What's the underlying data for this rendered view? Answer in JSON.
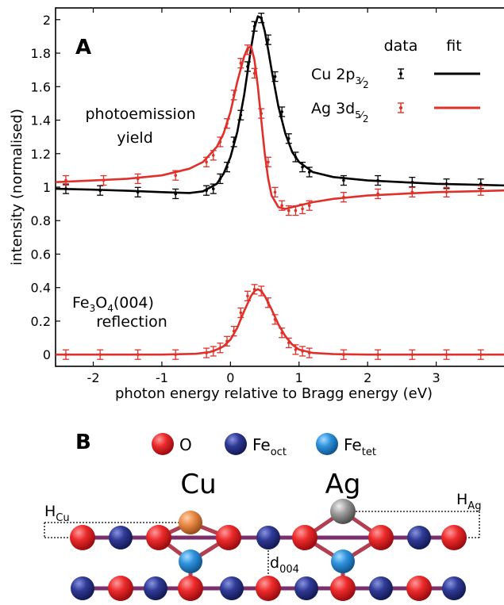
{
  "panel_a": {
    "label": "A",
    "xlabel": "photon energy relative to Bragg energy (eV)",
    "ylabel": "intensity (normalised)",
    "xticks": [
      "-2",
      "-1",
      "0",
      "1",
      "2",
      "3"
    ],
    "yticks": [
      "0",
      "0.2",
      "0.4",
      "0.6",
      "0.8",
      "1",
      "1.2",
      "1.4",
      "1.6",
      "1.8",
      "2"
    ],
    "legend": {
      "data_header": "data",
      "fit_header": "fit",
      "cu_entry": "Cu 2p",
      "cu_sub1": "3",
      "cu_sub2": "2",
      "ag_entry": "Ag 3d",
      "ag_sub1": "5",
      "ag_sub2": "2"
    },
    "annotations": {
      "pe_line1": "photoemission",
      "pe_line2": "yield",
      "refl_fe": "Fe",
      "refl_sub3": "3",
      "refl_o": "O",
      "refl_sub4": "4",
      "refl_hkl": "(004)",
      "refl_line2": "reflection"
    }
  },
  "panel_b": {
    "label": "B",
    "legend_o": "O",
    "legend_feoct": "Fe",
    "legend_feoct_sub": "oct",
    "legend_fetet": "Fe",
    "legend_fetet_sub": "tet",
    "cu_label": "Cu",
    "ag_label": "Ag",
    "h_cu": "H",
    "h_cu_sub": "Cu",
    "h_ag": "H",
    "h_ag_sub": "Ag",
    "d_label": "d",
    "d_sub": "004"
  },
  "colors": {
    "cu": "#000000",
    "ag": "#e0302a",
    "o_atom": "#e8222a",
    "fe_oct": "#2e3a8c",
    "fe_tet": "#2f8fd6",
    "cu_atom": "#e98a45",
    "ag_atom": "#9a9a9a"
  },
  "chart_data": {
    "type": "line",
    "xlim": [
      -2.55,
      4.0
    ],
    "ylim": [
      -0.07,
      2.07
    ],
    "grid": false,
    "legend_position": "top-right",
    "series": [
      {
        "name": "Cu 2p3/2",
        "kind": "data",
        "x": [
          -2.4,
          -1.9,
          -1.35,
          -0.8,
          -0.35,
          -0.25,
          -0.15,
          -0.05,
          0.05,
          0.15,
          0.25,
          0.35,
          0.45,
          0.55,
          0.65,
          0.75,
          0.85,
          0.95,
          1.05,
          1.15,
          1.65,
          2.15,
          2.65,
          3.15,
          3.65
        ],
        "y": [
          0.99,
          0.98,
          0.97,
          0.96,
          0.98,
          0.99,
          1.05,
          1.12,
          1.27,
          1.43,
          1.72,
          1.96,
          2.01,
          1.88,
          1.66,
          1.45,
          1.29,
          1.18,
          1.12,
          1.09,
          1.04,
          1.04,
          1.03,
          1.02,
          1.02
        ]
      },
      {
        "name": "Ag 3d5/2",
        "kind": "data",
        "x": [
          -2.4,
          -1.85,
          -1.35,
          -0.8,
          -0.35,
          -0.25,
          -0.15,
          -0.05,
          0.05,
          0.15,
          0.25,
          0.35,
          0.45,
          0.55,
          0.65,
          0.75,
          0.85,
          0.95,
          1.05,
          1.15,
          1.65,
          2.15,
          2.65,
          3.15,
          3.65
        ],
        "y": [
          1.04,
          1.04,
          1.05,
          1.07,
          1.15,
          1.19,
          1.27,
          1.38,
          1.55,
          1.74,
          1.82,
          1.68,
          1.44,
          1.15,
          0.97,
          0.89,
          0.86,
          0.86,
          0.87,
          0.89,
          0.94,
          0.96,
          0.97,
          0.97,
          0.98
        ]
      },
      {
        "name": "Fe3O4(004) reflection",
        "kind": "data",
        "x": [
          -2.4,
          -1.9,
          -1.35,
          -0.8,
          -0.35,
          -0.25,
          -0.15,
          -0.05,
          0.05,
          0.15,
          0.25,
          0.35,
          0.45,
          0.55,
          0.65,
          0.75,
          0.85,
          0.95,
          1.05,
          1.15,
          1.65,
          2.15,
          2.65,
          3.15,
          3.65
        ],
        "y": [
          0.0,
          0.0,
          0.0,
          0.0,
          0.01,
          0.02,
          0.04,
          0.08,
          0.14,
          0.25,
          0.35,
          0.39,
          0.38,
          0.31,
          0.21,
          0.13,
          0.07,
          0.03,
          0.02,
          0.01,
          0.0,
          0.0,
          0.0,
          0.0,
          0.0
        ]
      },
      {
        "name": "Cu 2p3/2",
        "kind": "fit",
        "x": [
          -2.55,
          -2.0,
          -1.5,
          -1.0,
          -0.6,
          -0.4,
          -0.2,
          -0.1,
          0.0,
          0.1,
          0.2,
          0.3,
          0.35,
          0.4,
          0.45,
          0.5,
          0.55,
          0.6,
          0.7,
          0.8,
          0.9,
          1.0,
          1.2,
          1.5,
          2.0,
          2.5,
          3.0,
          3.5,
          4.0
        ],
        "y": [
          0.99,
          0.985,
          0.978,
          0.97,
          0.965,
          0.975,
          1.02,
          1.08,
          1.18,
          1.33,
          1.55,
          1.83,
          1.95,
          2.02,
          2.01,
          1.93,
          1.82,
          1.7,
          1.48,
          1.32,
          1.21,
          1.15,
          1.09,
          1.06,
          1.04,
          1.03,
          1.02,
          1.015,
          1.01
        ]
      },
      {
        "name": "Ag 3d5/2",
        "kind": "fit",
        "x": [
          -2.55,
          -2.0,
          -1.5,
          -1.0,
          -0.6,
          -0.4,
          -0.2,
          -0.1,
          0.0,
          0.1,
          0.2,
          0.25,
          0.3,
          0.35,
          0.4,
          0.45,
          0.5,
          0.55,
          0.6,
          0.7,
          0.8,
          0.9,
          1.0,
          1.2,
          1.5,
          2.0,
          2.5,
          3.0,
          3.5,
          4.0
        ],
        "y": [
          1.03,
          1.04,
          1.05,
          1.07,
          1.11,
          1.15,
          1.24,
          1.32,
          1.45,
          1.63,
          1.78,
          1.83,
          1.84,
          1.76,
          1.6,
          1.4,
          1.2,
          1.05,
          0.95,
          0.88,
          0.87,
          0.88,
          0.89,
          0.91,
          0.93,
          0.95,
          0.96,
          0.97,
          0.975,
          0.98
        ]
      },
      {
        "name": "Fe3O4(004) reflection",
        "kind": "fit",
        "x": [
          -2.55,
          -1.0,
          -0.5,
          -0.3,
          -0.2,
          -0.1,
          0.0,
          0.1,
          0.2,
          0.3,
          0.35,
          0.4,
          0.45,
          0.5,
          0.6,
          0.7,
          0.8,
          0.9,
          1.0,
          1.2,
          1.5,
          2.0,
          4.0
        ],
        "y": [
          0.0,
          0.0,
          0.005,
          0.015,
          0.03,
          0.05,
          0.09,
          0.16,
          0.26,
          0.35,
          0.38,
          0.39,
          0.38,
          0.35,
          0.27,
          0.18,
          0.11,
          0.06,
          0.03,
          0.01,
          0.003,
          0.0,
          0.0
        ]
      }
    ]
  }
}
